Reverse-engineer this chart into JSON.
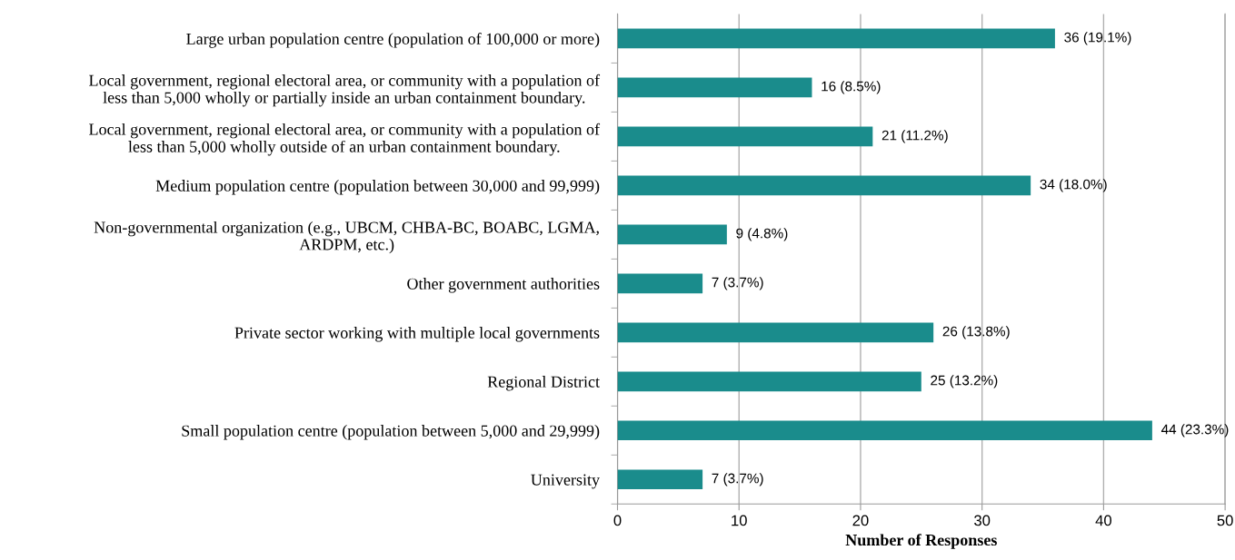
{
  "chart_data": {
    "type": "bar",
    "orientation": "horizontal",
    "xlabel": "Number of Responses",
    "categories": [
      "Large urban population centre (population of 100,000 or more)",
      "Local government, regional electoral area, or community with a population of\nless than 5,000 wholly or partially inside an urban containment boundary.",
      "Local government, regional electoral area, or community with a population of\nless than 5,000 wholly outside of an urban containment boundary.",
      "Medium population centre (population between 30,000 and 99,999)",
      "Non-governmental organization (e.g., UBCM, CHBA-BC, BOABC, LGMA,\nARDPM, etc.)",
      "Other government authorities",
      "Private sector working with multiple local governments",
      "Regional District",
      "Small population centre (population between 5,000 and 29,999)",
      "University"
    ],
    "values": [
      36,
      16,
      21,
      34,
      9,
      7,
      26,
      25,
      44,
      7
    ],
    "value_labels": [
      "36 (19.1%)",
      "16 (8.5%)",
      "21 (11.2%)",
      "34 (18.0%)",
      "9 (4.8%)",
      "7 (3.7%)",
      "26 (13.8%)",
      "25 (13.2%)",
      "44 (23.3%)",
      "7 (3.7%)"
    ],
    "color": "#1a8c8c",
    "xlim": [
      0,
      50
    ],
    "xticks": [
      0,
      10,
      20,
      30,
      40,
      50
    ],
    "grid": "x"
  }
}
